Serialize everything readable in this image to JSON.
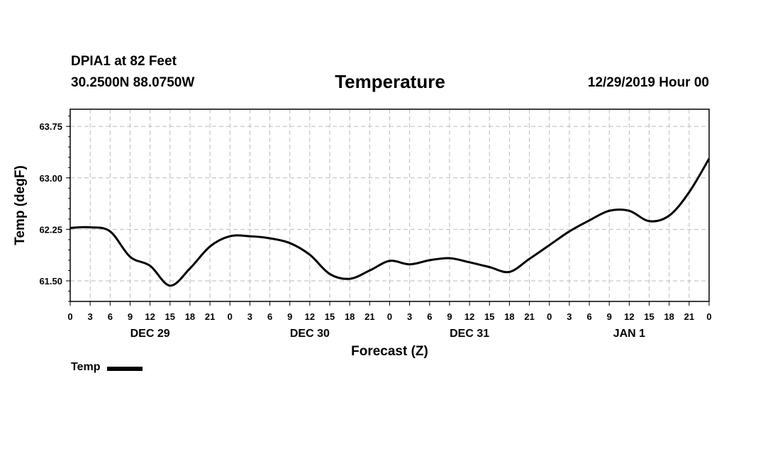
{
  "header": {
    "station": "DPIA1 at 82 Feet",
    "coords": "30.2500N 88.0750W",
    "title": "Temperature",
    "datetime": "12/29/2019 Hour 00"
  },
  "legend": {
    "label": "Temp"
  },
  "colors": {
    "line": "#000000",
    "grid": "#bbbbbb",
    "background": "#ffffff"
  },
  "chart_data": {
    "type": "line",
    "title": "Temperature",
    "xlabel": "Forecast (Z)",
    "ylabel": "Temp (degF)",
    "xlim": [
      0,
      96
    ],
    "ylim": [
      61.2,
      64.0
    ],
    "yticks": [
      61.5,
      62.25,
      63.0,
      63.75
    ],
    "ytick_labels": [
      "61.50",
      "62.25",
      "63.00",
      "63.75"
    ],
    "xtick_hours": [
      0,
      3,
      6,
      9,
      12,
      15,
      18,
      21,
      24,
      27,
      30,
      33,
      36,
      39,
      42,
      45,
      48,
      51,
      54,
      57,
      60,
      63,
      66,
      69,
      72,
      75,
      78,
      81,
      84,
      87,
      90,
      93,
      96
    ],
    "xtick_labels": [
      "0",
      "3",
      "6",
      "9",
      "12",
      "15",
      "18",
      "21",
      "0",
      "3",
      "6",
      "9",
      "12",
      "15",
      "18",
      "21",
      "0",
      "3",
      "6",
      "9",
      "12",
      "15",
      "18",
      "21",
      "0",
      "3",
      "6",
      "9",
      "12",
      "15",
      "18",
      "21",
      "0"
    ],
    "day_labels": [
      {
        "hour": 12,
        "label": "DEC 29"
      },
      {
        "hour": 36,
        "label": "DEC 30"
      },
      {
        "hour": 60,
        "label": "DEC 31"
      },
      {
        "hour": 84,
        "label": "JAN 1"
      }
    ],
    "grid": true,
    "legend_position": "bottom-left",
    "series": [
      {
        "name": "Temp",
        "x": [
          0,
          3,
          6,
          9,
          12,
          15,
          18,
          21,
          24,
          27,
          30,
          33,
          36,
          39,
          42,
          45,
          48,
          51,
          54,
          57,
          60,
          63,
          66,
          69,
          72,
          75,
          78,
          81,
          84,
          87,
          90,
          93,
          96
        ],
        "values": [
          62.27,
          62.28,
          62.22,
          61.85,
          61.72,
          61.43,
          61.68,
          62.0,
          62.15,
          62.15,
          62.12,
          62.05,
          61.88,
          61.6,
          61.53,
          61.65,
          61.79,
          61.74,
          61.8,
          61.83,
          61.77,
          61.7,
          61.63,
          61.82,
          62.02,
          62.22,
          62.38,
          62.52,
          62.52,
          62.37,
          62.45,
          62.79,
          63.28
        ]
      }
    ]
  }
}
